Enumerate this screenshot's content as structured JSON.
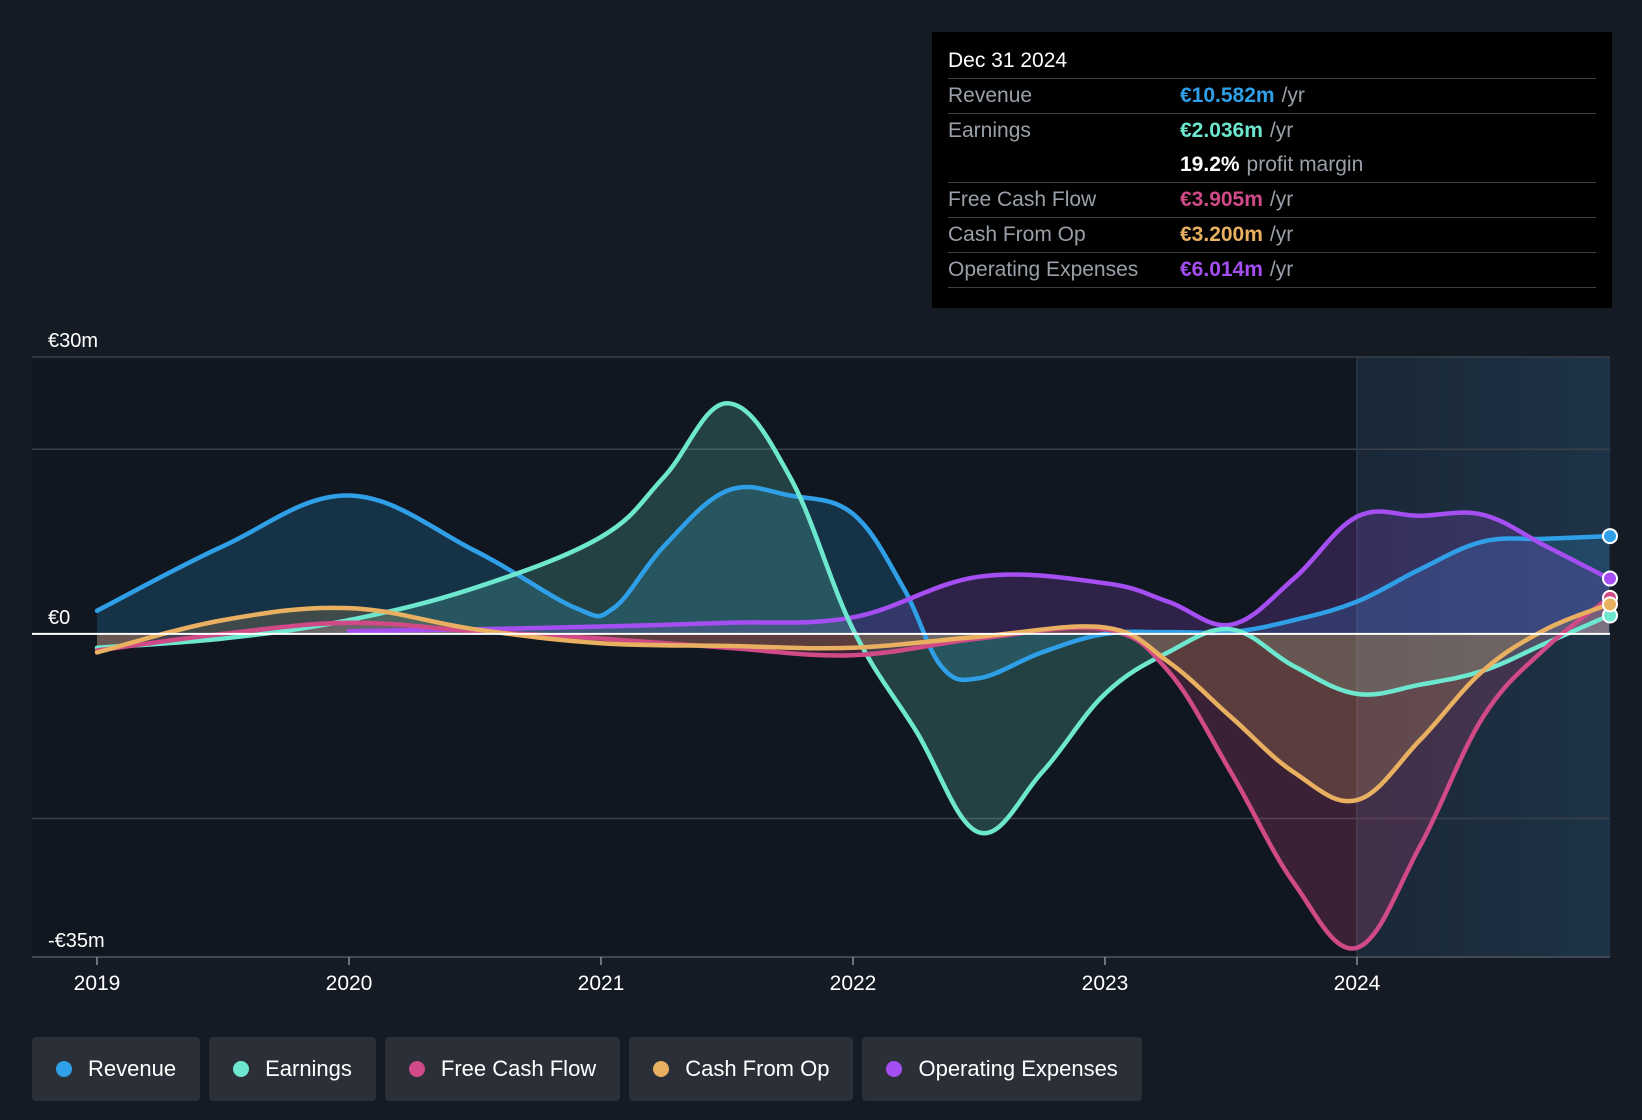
{
  "colors": {
    "revenue": "#2fa0e8",
    "earnings": "#6ee7cf",
    "fcf": "#cf4a86",
    "cfo": "#e8b060",
    "opex": "#a54ff2",
    "axis": "#dce2ea",
    "grid": "#3a4049"
  },
  "tooltip": {
    "date": "Dec 31 2024",
    "rows": [
      {
        "label": "Revenue",
        "value": "€10.582m",
        "unit": "/yr"
      },
      {
        "label": "Earnings",
        "value": "€2.036m",
        "unit": "/yr"
      },
      {
        "label": "",
        "value": "19.2%",
        "unit": "profit margin"
      },
      {
        "label": "Free Cash Flow",
        "value": "€3.905m",
        "unit": "/yr"
      },
      {
        "label": "Cash From Op",
        "value": "€3.200m",
        "unit": "/yr"
      },
      {
        "label": "Operating Expenses",
        "value": "€6.014m",
        "unit": "/yr"
      }
    ]
  },
  "legend": [
    {
      "label": "Revenue",
      "key": "revenue"
    },
    {
      "label": "Earnings",
      "key": "earnings"
    },
    {
      "label": "Free Cash Flow",
      "key": "fcf"
    },
    {
      "label": "Cash From Op",
      "key": "cfo"
    },
    {
      "label": "Operating Expenses",
      "key": "opex"
    }
  ],
  "chart_data": {
    "type": "area",
    "title": "",
    "xlabel": "",
    "ylabel": "",
    "ylim": [
      -35,
      30
    ],
    "xlim": [
      2019,
      2025
    ],
    "y_tick_labels": [
      {
        "value": 30,
        "label": "€30m"
      },
      {
        "value": 0,
        "label": "€0"
      },
      {
        "value": -35,
        "label": "-€35m"
      }
    ],
    "gridlines": [
      30,
      20,
      -20,
      -35
    ],
    "x_ticks": [
      2019,
      2020,
      2021,
      2022,
      2023,
      2024
    ],
    "x_tick_labels": [
      "2019",
      "2020",
      "2021",
      "2022",
      "2023",
      "2024"
    ],
    "forecast_region_start": 2024,
    "series": [
      {
        "name": "Revenue",
        "key": "revenue",
        "points": [
          [
            2019,
            2.5
          ],
          [
            2019.5,
            9.5
          ],
          [
            2020,
            15.0
          ],
          [
            2020.5,
            9.0
          ],
          [
            2020.9,
            2.8
          ],
          [
            2021.05,
            2.8
          ],
          [
            2021.25,
            9.5
          ],
          [
            2021.5,
            15.5
          ],
          [
            2021.75,
            15.0
          ],
          [
            2022.0,
            13.0
          ],
          [
            2022.2,
            5.0
          ],
          [
            2022.35,
            -3.5
          ],
          [
            2022.5,
            -4.8
          ],
          [
            2022.75,
            -2.0
          ],
          [
            2023,
            0.0
          ],
          [
            2023.25,
            0.2
          ],
          [
            2023.5,
            0.2
          ],
          [
            2023.75,
            1.5
          ],
          [
            2024,
            3.5
          ],
          [
            2024.25,
            7.0
          ],
          [
            2024.5,
            10.0
          ],
          [
            2024.75,
            10.3
          ],
          [
            2025,
            10.6
          ]
        ]
      },
      {
        "name": "Earnings",
        "key": "earnings",
        "points": [
          [
            2019,
            -1.5
          ],
          [
            2019.5,
            -0.5
          ],
          [
            2020,
            1.5
          ],
          [
            2020.5,
            5.0
          ],
          [
            2021,
            10.5
          ],
          [
            2021.25,
            17.0
          ],
          [
            2021.5,
            25.0
          ],
          [
            2021.75,
            17.0
          ],
          [
            2022,
            0.5
          ],
          [
            2022.25,
            -10.5
          ],
          [
            2022.5,
            -21.5
          ],
          [
            2022.75,
            -15.0
          ],
          [
            2023,
            -6.5
          ],
          [
            2023.25,
            -2.0
          ],
          [
            2023.5,
            0.5
          ],
          [
            2023.75,
            -3.5
          ],
          [
            2024,
            -6.5
          ],
          [
            2024.25,
            -5.5
          ],
          [
            2024.5,
            -4.0
          ],
          [
            2024.75,
            -1.0
          ],
          [
            2025,
            2.0
          ]
        ]
      },
      {
        "name": "Free Cash Flow",
        "key": "fcf",
        "points": [
          [
            2019,
            -1.8
          ],
          [
            2019.5,
            0.0
          ],
          [
            2020,
            1.2
          ],
          [
            2020.5,
            0.3
          ],
          [
            2021,
            -0.5
          ],
          [
            2021.5,
            -1.5
          ],
          [
            2022,
            -2.3
          ],
          [
            2022.5,
            -0.5
          ],
          [
            2023,
            0.5
          ],
          [
            2023.25,
            -4.0
          ],
          [
            2023.5,
            -15.0
          ],
          [
            2023.75,
            -27.0
          ],
          [
            2024,
            -34.0
          ],
          [
            2024.25,
            -23.0
          ],
          [
            2024.5,
            -9.0
          ],
          [
            2024.75,
            -1.5
          ],
          [
            2025,
            3.9
          ]
        ]
      },
      {
        "name": "Cash From Op",
        "key": "cfo",
        "points": [
          [
            2019,
            -2.0
          ],
          [
            2019.5,
            1.5
          ],
          [
            2020,
            2.8
          ],
          [
            2020.5,
            0.5
          ],
          [
            2021,
            -1.0
          ],
          [
            2021.5,
            -1.3
          ],
          [
            2022,
            -1.5
          ],
          [
            2022.5,
            -0.3
          ],
          [
            2023,
            0.7
          ],
          [
            2023.25,
            -3.0
          ],
          [
            2023.5,
            -9.0
          ],
          [
            2023.75,
            -15.0
          ],
          [
            2024,
            -18.0
          ],
          [
            2024.25,
            -11.5
          ],
          [
            2024.5,
            -4.0
          ],
          [
            2024.75,
            0.5
          ],
          [
            2025,
            3.2
          ]
        ]
      },
      {
        "name": "Operating Expenses",
        "key": "opex",
        "points": [
          [
            2020,
            0.3
          ],
          [
            2020.5,
            0.5
          ],
          [
            2021,
            0.8
          ],
          [
            2021.5,
            1.2
          ],
          [
            2022,
            1.8
          ],
          [
            2022.5,
            6.2
          ],
          [
            2023,
            5.5
          ],
          [
            2023.25,
            3.5
          ],
          [
            2023.5,
            1.0
          ],
          [
            2023.75,
            6.0
          ],
          [
            2024,
            12.7
          ],
          [
            2024.25,
            12.8
          ],
          [
            2024.5,
            12.9
          ],
          [
            2024.75,
            9.5
          ],
          [
            2025,
            6.0
          ]
        ]
      }
    ]
  }
}
